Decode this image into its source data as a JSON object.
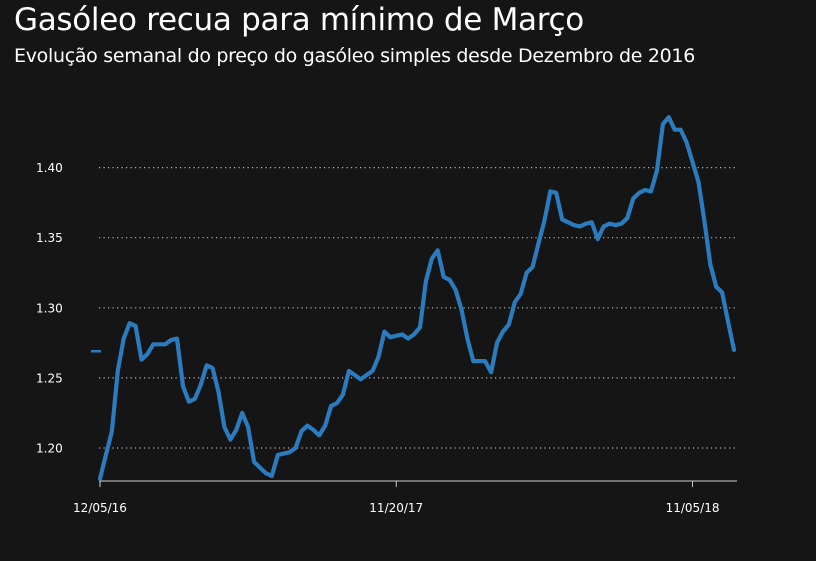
{
  "chart_data": {
    "type": "line",
    "title": "Gasóleo recua para mínimo de Março",
    "subtitle": "Evolução semanal do preço do gasóleo simples desde Dezembro de 2016",
    "xlabel": "",
    "ylabel": "",
    "ylim": [
      1.177,
      1.44
    ],
    "y_ticks": [
      "1.20",
      "1.25",
      "1.30",
      "1.35",
      "1.40"
    ],
    "x_ticks": [
      "12/05/16",
      "11/20/17",
      "11/05/18"
    ],
    "grid": "horizontal dotted",
    "color": "#2b7bbf",
    "start_marker_value": 1.269,
    "series": [
      {
        "values": [
          1.178,
          1.195,
          1.212,
          1.255,
          1.278,
          1.289,
          1.287,
          1.263,
          1.267,
          1.274,
          1.274,
          1.274,
          1.277,
          1.278,
          1.244,
          1.233,
          1.235,
          1.245,
          1.259,
          1.257,
          1.24,
          1.215,
          1.206,
          1.213,
          1.225,
          1.215,
          1.19,
          1.186,
          1.182,
          1.18,
          1.195,
          1.196,
          1.197,
          1.2,
          1.212,
          1.216,
          1.213,
          1.209,
          1.216,
          1.23,
          1.232,
          1.238,
          1.255,
          1.252,
          1.249,
          1.252,
          1.255,
          1.265,
          1.283,
          1.279,
          1.28,
          1.281,
          1.278,
          1.281,
          1.286,
          1.319,
          1.335,
          1.341,
          1.322,
          1.32,
          1.313,
          1.299,
          1.278,
          1.262,
          1.262,
          1.262,
          1.254,
          1.275,
          1.283,
          1.288,
          1.304,
          1.31,
          1.325,
          1.329,
          1.346,
          1.362,
          1.383,
          1.382,
          1.363,
          1.361,
          1.359,
          1.358,
          1.36,
          1.361,
          1.349,
          1.358,
          1.36,
          1.359,
          1.36,
          1.364,
          1.378,
          1.382,
          1.384,
          1.383,
          1.398,
          1.431,
          1.436,
          1.427,
          1.427,
          1.418,
          1.404,
          1.39,
          1.362,
          1.331,
          1.315,
          1.311,
          1.29,
          1.27
        ]
      }
    ]
  }
}
